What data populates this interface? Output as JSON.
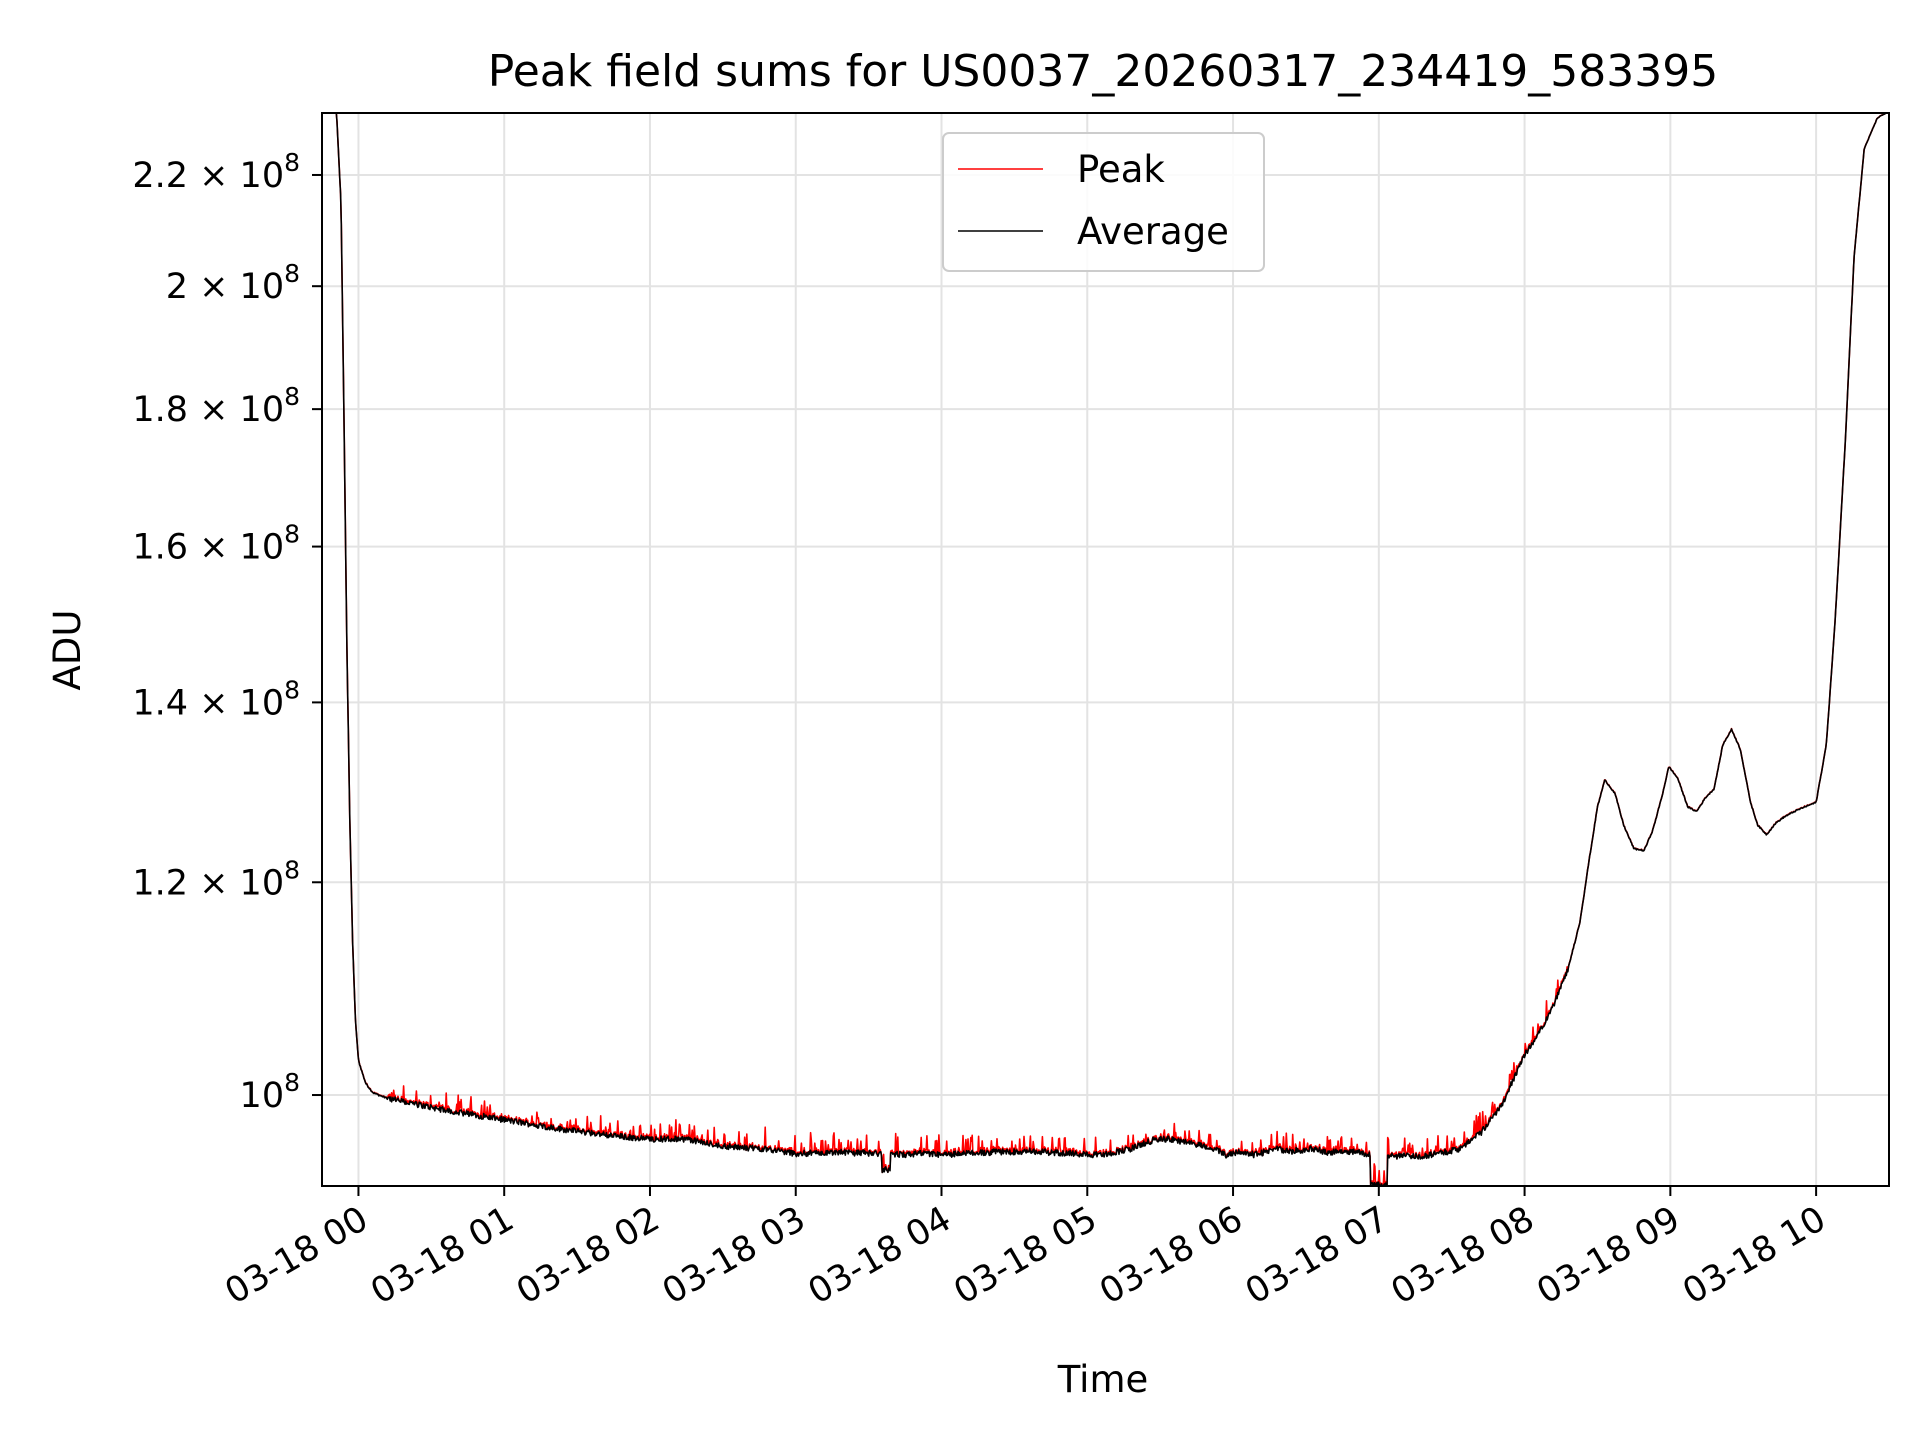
{
  "chart_data": {
    "type": "line",
    "title": "Peak field sums for US0037_20260317_234419_583395",
    "xlabel": "Time",
    "ylabel": "ADU",
    "yscale": "log",
    "ylim": [
      92500000,
      232000000
    ],
    "grid": true,
    "legend_position": "upper center",
    "x_tick_labels": [
      "03-18 00",
      "03-18 01",
      "03-18 02",
      "03-18 03",
      "03-18 04",
      "03-18 05",
      "03-18 06",
      "03-18 07",
      "03-18 08",
      "03-18 09",
      "03-18 10"
    ],
    "y_ticks": [
      {
        "value": 100000000,
        "mantissa": "",
        "base": "10",
        "exponent": "8"
      },
      {
        "value": 120000000,
        "mantissa": "1.2 × ",
        "base": "10",
        "exponent": "8"
      },
      {
        "value": 140000000,
        "mantissa": "1.4 × ",
        "base": "10",
        "exponent": "8"
      },
      {
        "value": 160000000,
        "mantissa": "1.6 × ",
        "base": "10",
        "exponent": "8"
      },
      {
        "value": 180000000,
        "mantissa": "1.8 × ",
        "base": "10",
        "exponent": "8"
      },
      {
        "value": 200000000,
        "mantissa": "2 × ",
        "base": "10",
        "exponent": "8"
      },
      {
        "value": 220000000,
        "mantissa": "2.2 × ",
        "base": "10",
        "exponent": "8"
      }
    ],
    "series": [
      {
        "name": "Peak",
        "color": "#ff0000"
      },
      {
        "name": "Average",
        "color": "#000000"
      }
    ],
    "x_unit": "time (03-18, decimal hours)",
    "profile": [
      [
        -0.22,
        232000000
      ],
      [
        -0.15,
        232000000
      ],
      [
        -0.12,
        215000000
      ],
      [
        -0.1,
        180000000
      ],
      [
        -0.08,
        148000000
      ],
      [
        -0.06,
        127000000
      ],
      [
        -0.04,
        114000000
      ],
      [
        -0.02,
        106500000
      ],
      [
        0.0,
        103000000
      ],
      [
        0.05,
        101000000
      ],
      [
        0.1,
        100200000
      ],
      [
        0.2,
        99700000
      ],
      [
        0.4,
        99200000
      ],
      [
        0.6,
        98700000
      ],
      [
        0.8,
        98300000
      ],
      [
        1.0,
        97900000
      ],
      [
        1.2,
        97500000
      ],
      [
        1.4,
        97100000
      ],
      [
        1.6,
        96800000
      ],
      [
        1.8,
        96500000
      ],
      [
        2.0,
        96300000
      ],
      [
        2.25,
        96300000
      ],
      [
        2.4,
        95900000
      ],
      [
        2.6,
        95600000
      ],
      [
        2.8,
        95500000
      ],
      [
        3.0,
        95100000
      ],
      [
        3.3,
        95200000
      ],
      [
        3.6,
        95100000
      ],
      [
        3.75,
        95000000
      ],
      [
        3.85,
        95100000
      ],
      [
        4.0,
        95000000
      ],
      [
        4.3,
        95200000
      ],
      [
        4.6,
        95300000
      ],
      [
        4.9,
        95100000
      ],
      [
        5.1,
        95000000
      ],
      [
        5.3,
        95500000
      ],
      [
        5.45,
        96200000
      ],
      [
        5.55,
        96300000
      ],
      [
        5.7,
        96000000
      ],
      [
        5.85,
        95600000
      ],
      [
        5.95,
        95000000
      ],
      [
        6.05,
        95300000
      ],
      [
        6.15,
        95000000
      ],
      [
        6.3,
        95500000
      ],
      [
        6.4,
        95300000
      ],
      [
        6.55,
        95500000
      ],
      [
        6.65,
        95200000
      ],
      [
        6.8,
        95300000
      ],
      [
        6.95,
        95000000
      ],
      [
        7.1,
        94900000
      ],
      [
        7.3,
        94900000
      ],
      [
        7.45,
        95200000
      ],
      [
        7.55,
        95500000
      ],
      [
        7.7,
        96800000
      ],
      [
        7.85,
        99300000
      ],
      [
        8.0,
        103500000
      ],
      [
        8.1,
        105500000
      ],
      [
        8.2,
        108000000
      ],
      [
        8.3,
        111500000
      ],
      [
        8.38,
        116000000
      ],
      [
        8.44,
        122000000
      ],
      [
        8.5,
        128000000
      ],
      [
        8.55,
        131000000
      ],
      [
        8.62,
        129500000
      ],
      [
        8.68,
        126000000
      ],
      [
        8.75,
        123500000
      ],
      [
        8.82,
        123300000
      ],
      [
        8.88,
        125500000
      ],
      [
        8.94,
        129000000
      ],
      [
        8.99,
        132500000
      ],
      [
        9.05,
        131200000
      ],
      [
        9.12,
        128000000
      ],
      [
        9.18,
        127500000
      ],
      [
        9.24,
        129000000
      ],
      [
        9.3,
        130000000
      ],
      [
        9.36,
        135000000
      ],
      [
        9.42,
        136800000
      ],
      [
        9.48,
        134500000
      ],
      [
        9.55,
        128500000
      ],
      [
        9.6,
        126000000
      ],
      [
        9.66,
        125000000
      ],
      [
        9.72,
        126200000
      ],
      [
        9.78,
        126900000
      ],
      [
        9.85,
        127500000
      ],
      [
        9.92,
        128000000
      ],
      [
        10.0,
        128500000
      ],
      [
        10.07,
        135000000
      ],
      [
        10.13,
        150000000
      ],
      [
        10.2,
        175000000
      ],
      [
        10.26,
        205000000
      ],
      [
        10.33,
        225000000
      ],
      [
        10.42,
        231000000
      ],
      [
        10.48,
        232000000
      ]
    ],
    "dips": [
      {
        "x": 3.62,
        "min": 93800000,
        "width": 0.03
      },
      {
        "x": 7.0,
        "min": 92600000,
        "width": 0.06
      }
    ]
  }
}
